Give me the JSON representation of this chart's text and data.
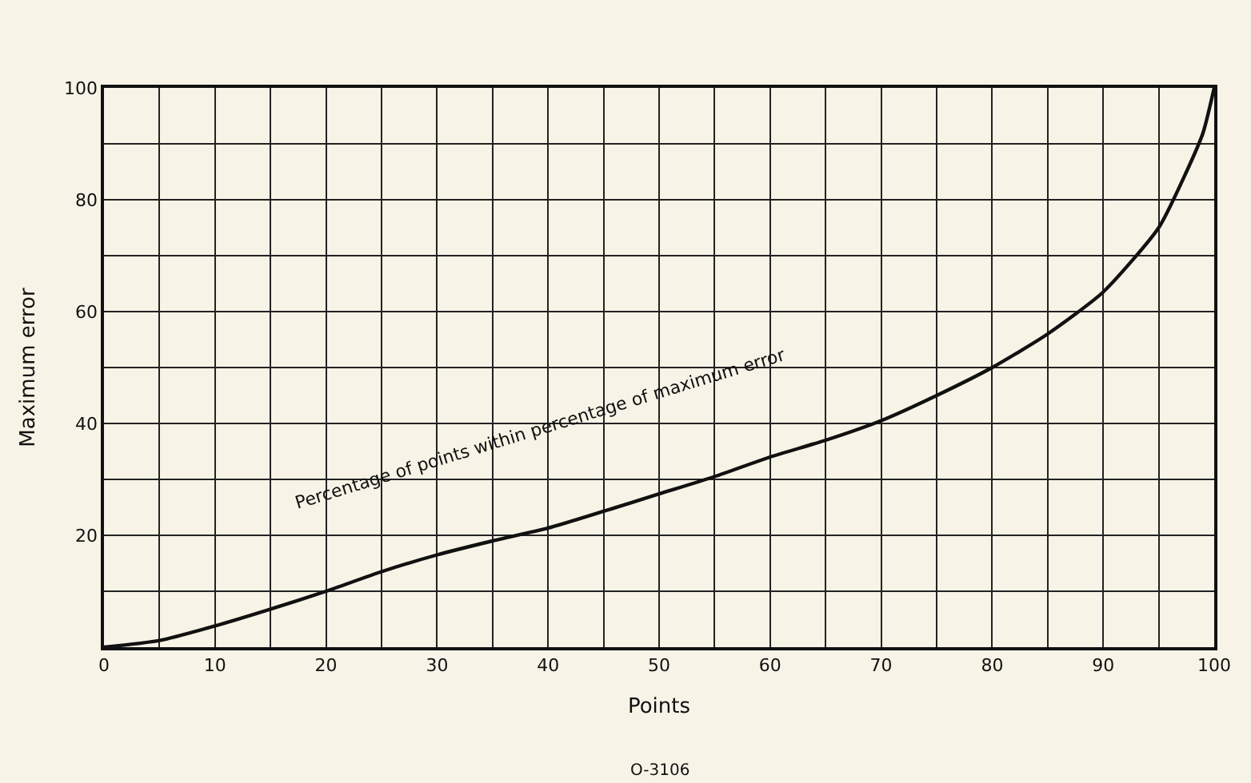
{
  "chart_data": {
    "type": "line",
    "xlabel": "Points",
    "ylabel": "Maximum error",
    "annotations": [
      "O-3106"
    ],
    "x": [
      0,
      5,
      10,
      15,
      20,
      25,
      30,
      35,
      40,
      45,
      50,
      55,
      60,
      65,
      70,
      75,
      80,
      85,
      90,
      95,
      97.5,
      99,
      100
    ],
    "series": [
      {
        "name": "Percentage of points within percentage of maximum error",
        "color": "#111111",
        "values": [
          0,
          1.2,
          3.8,
          6.8,
          10,
          13.5,
          16.5,
          19,
          21.3,
          24.3,
          27.4,
          30.5,
          34,
          37,
          40.5,
          45,
          50,
          56,
          63.5,
          75,
          85,
          92,
          100
        ]
      }
    ],
    "xlim": [
      0,
      100
    ],
    "ylim": [
      0,
      100
    ],
    "xticks": [
      0,
      {
        "value": 5,
        "label": null
      },
      10,
      {
        "value": 15,
        "label": null
      },
      20,
      {
        "value": 25,
        "label": null
      },
      30,
      {
        "value": 35,
        "label": null
      },
      40,
      {
        "value": 45,
        "label": null
      },
      50,
      {
        "value": 55,
        "label": null
      },
      60,
      {
        "value": 65,
        "label": null
      },
      70,
      {
        "value": 75,
        "label": null
      },
      80,
      {
        "value": 85,
        "label": null
      },
      90,
      {
        "value": 95,
        "label": null
      },
      100
    ],
    "yticks": [
      {
        "value": 0,
        "label": null
      },
      {
        "value": 10,
        "label": null
      },
      20,
      {
        "value": 30,
        "label": null
      },
      40,
      {
        "value": 50,
        "label": null
      },
      60,
      {
        "value": 70,
        "label": null
      },
      80,
      {
        "value": 90,
        "label": null
      },
      100
    ],
    "grid": true,
    "legend": false,
    "marker": "none",
    "line_style": "solid"
  }
}
